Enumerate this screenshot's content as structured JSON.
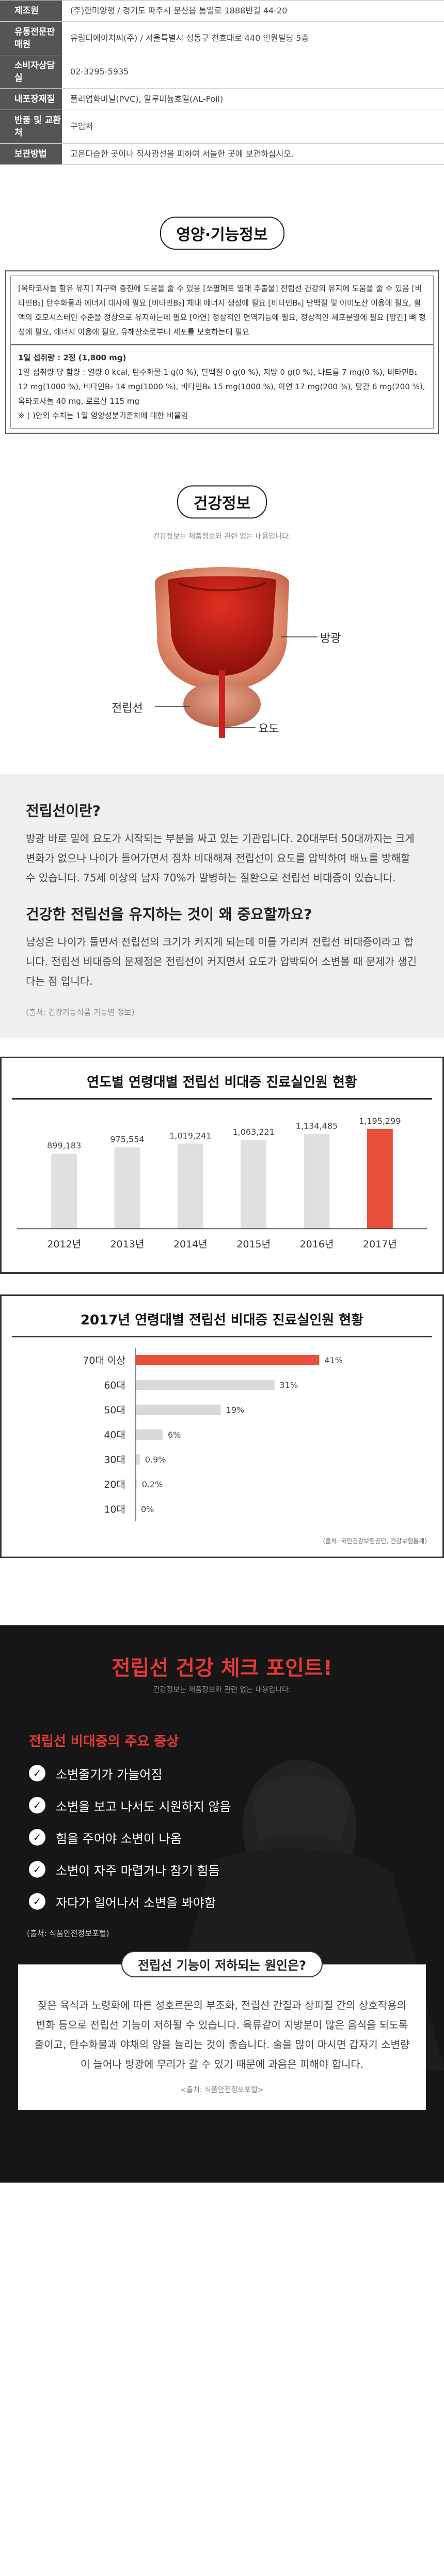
{
  "product_info": [
    {
      "label": "제조원",
      "value": "(주)한미양행 / 경기도 파주시 문산읍 통일로 1888번길 44-20"
    },
    {
      "label": "유통전문판매원",
      "value": "유림티에이치씨(주) / 서울특별시 성동구 천호대로 440 인원빌딩 5층"
    },
    {
      "label": "소비자상담실",
      "value": "02-3295-5935"
    },
    {
      "label": "내포장재질",
      "value": "폴리염화비닐(PVC), 알루미늄호일(AL-Foil)"
    },
    {
      "label": "반품 및 교환처",
      "value": "구입처"
    },
    {
      "label": "보관방법",
      "value": "고온다습한 곳이나 직사광선을 피하여 서늘한 곳에 보관하십시오."
    }
  ],
  "nutrition": {
    "title": "영양·기능정보",
    "functionality": "[옥타코사놀 함유 유지] 지구력 증진에 도움을 줄 수 있음 [쏘팔메토 열매 추출물] 전립선 건강의 유지에 도움을 줄 수 있음 [비타민B₁] 탄수화물과 에너지 대사에 필요 [비타민B₂] 체내 에너지 생성에 필요 [비타민B₆] 단백질 및 아미노산 이용에 필요, 혈액의 호모시스테인 수준을 정상으로 유지하는데 필요 [아연] 정상적인 면역기능에 필요, 정상적인 세포분열에 필요 [망간] 뼈 형성에 필요, 에너지 이용에 필요, 유해산소로부터 세포를 보호하는데 필요",
    "serving": "1일 섭취량 : 2정 (1,800 mg)",
    "facts": "1일 섭취량 당 함량 : 열량 0 kcal, 탄수화물 1 g(0 %), 단백질 0 g(0 %), 지방 0 g(0 %), 나트륨 7 mg(0 %), 비타민B₁ 12 mg(1000 %), 비타민B₂ 14 mg(1000 %), 비타민B₆ 15 mg(1000 %), 아연 17 mg(200 %), 망간 6 mg(200 %), 옥타코사놀 40 mg, 로르산 115 mg",
    "footnote": "※ (  )안의 수치는 1일 영양성분기준치에 대한 비율임"
  },
  "health": {
    "title": "건강정보",
    "subtitle": "건강정보는 제품정보와 관련 없는 내용입니다.",
    "labels": {
      "bladder": "방광",
      "prostate": "전립선",
      "urethra": "요도"
    },
    "q1": "전립선이란?",
    "a1": "방광 바로 밑에 요도가 시작되는 부분을 싸고 있는 기관입니다. 20대부터 50대까지는 크게 변화가 없으나 나이가 들어가면서 점차 비대해져 전립선이 요도를 압박하여 배뇨를 방해할 수 있습니다. 75세 이상의 남자 70%가 발병하는 질환으로 전립선 비대증이 있습니다.",
    "q2": "건강한 전립선을 유지하는 것이 왜 중요할까요?",
    "a2": "남성은 나이가 들면서 전립선의 크기가 커지게 되는데 이를 가리켜 전립선 비대증이라고 합니다. 전립선 비대증의 문제점은 전립선이 커지면서 요도가 압박되어 소변볼 때 문제가 생긴다는 점 입니다.",
    "source": "(출처: 건강기능식품 기능별 정보)"
  },
  "chart_data": [
    {
      "type": "bar",
      "title": "연도별 연령대별 전립선 비대증 진료실인원 현황",
      "categories": [
        "2012년",
        "2013년",
        "2014년",
        "2015년",
        "2016년",
        "2017년"
      ],
      "values": [
        899183,
        975554,
        1019241,
        1063221,
        1134485,
        1195299
      ],
      "value_labels": [
        "899,183",
        "975,554",
        "1,019,241",
        "1,063,221",
        "1,134,485",
        "1,195,299"
      ],
      "highlight_color": "#e8503a",
      "bar_color": "#e0e0e0",
      "ylim": [
        0,
        1300000
      ]
    },
    {
      "type": "bar",
      "orientation": "horizontal",
      "title": "2017년 연령대별 전립선 비대증 진료실인원 현황",
      "categories": [
        "70대 이상",
        "60대",
        "50대",
        "40대",
        "30대",
        "20대",
        "10대"
      ],
      "values": [
        41,
        31,
        19,
        6,
        0.9,
        0.2,
        0
      ],
      "value_labels": [
        "41%",
        "31%",
        "19%",
        "6%",
        "0.9%",
        "0.2%",
        "0%"
      ],
      "xlim": [
        0,
        45
      ],
      "highlight_color": "#e8503a",
      "bar_color": "#d9d9d9",
      "note": "(출처: 국민건강보험공단, 건강보험통계)"
    }
  ],
  "checkpoint": {
    "title": "전립선 건강 체크 포인트!",
    "subtitle": "건강정보는 제품정보와 관련 없는 내용입니다.",
    "symptom_heading": "전립선 비대증의 주요 증상",
    "symptoms": [
      "소변줄기가 가늘어짐",
      "소변을 보고 나서도 시원하지 않음",
      "힘을 주어야 소변이 나옴",
      "소변이 자주 마렵거나 참기 힘듬",
      "자다가 일어나서 소변을 봐야함"
    ],
    "symptom_source": "(출처: 식품안전정보포털)",
    "cause_title": "전립선 기능이 저하되는 원인은?",
    "cause_text": "잦은 육식과 노령화에 따른 성호르몬의 부조화, 전립선 간질과 상피질 간의 상호작용의 변화 등으로 전립선 기능이 저하될 수 있습니다. 육류같이 지방분이 많은 음식을 되도록 줄이고, 탄수화물과 야채의 양을 늘리는 것이 좋습니다. 술을 많이 마시면 갑자기 소변량이 늘어나 방광에 무리가 갈 수 있기 때문에 과음은 피해야 합니다.",
    "cause_source": "<출처: 식품안전정보포털>"
  }
}
